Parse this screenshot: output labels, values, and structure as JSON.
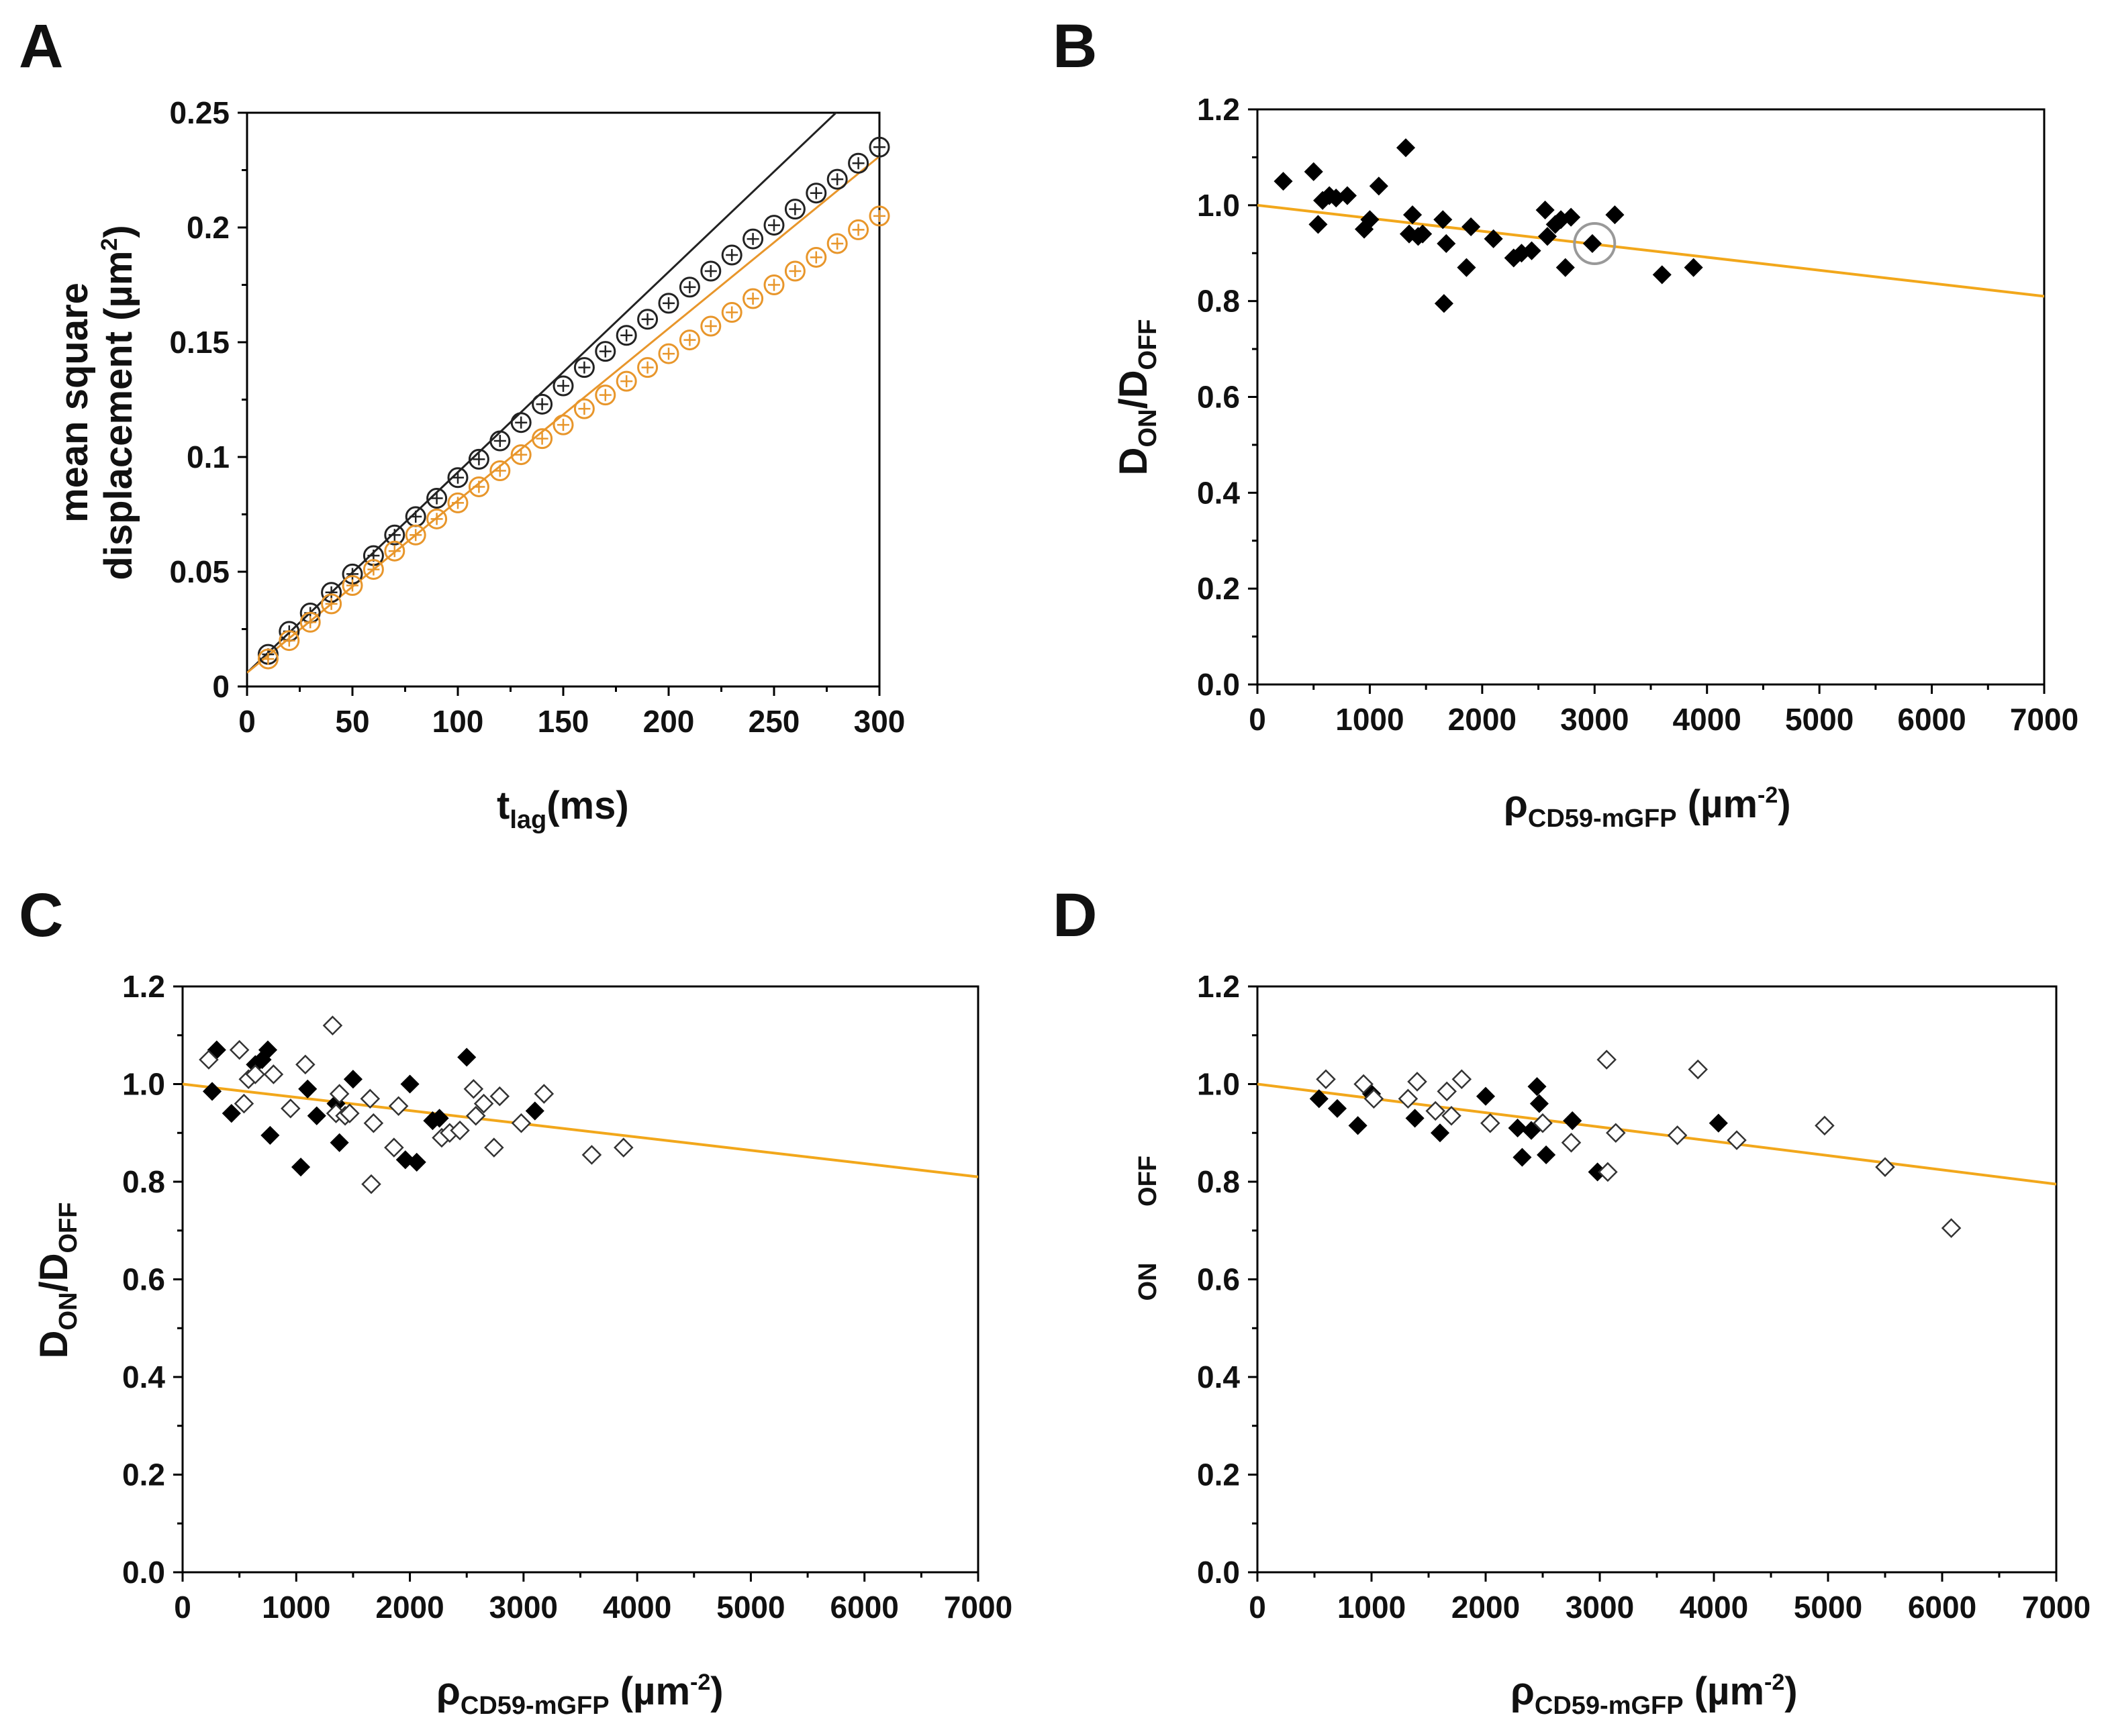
{
  "colors": {
    "fit": "#f2a71b",
    "orange_series": "#e8962b",
    "black": "#000000",
    "gray_marker": "#999999"
  },
  "chart_data": [
    {
      "panel": "A",
      "type": "scatter",
      "xlabel_main": "t",
      "xlabel_sub": "lag",
      "xlabel_unit": "(ms)",
      "ylabel_line1": "mean square",
      "ylabel_line2_pre": "displacement (µm",
      "ylabel_line2_sup": "2",
      "ylabel_line2_post": ")",
      "xlim": [
        0,
        300
      ],
      "ylim": [
        0,
        0.25
      ],
      "xticks": [
        0,
        50,
        100,
        150,
        200,
        250,
        300
      ],
      "xtick_labels": [
        "0",
        "50",
        "100",
        "150",
        "200",
        "250",
        "300"
      ],
      "yticks": [
        0,
        0.05,
        0.1,
        0.15,
        0.2,
        0.25
      ],
      "ytick_labels": [
        "0",
        "0.05",
        "0.1",
        "0.15",
        "0.2",
        "0.25"
      ],
      "series": [
        {
          "name": "black",
          "color": "#222222",
          "marker": "circle-cross",
          "x": [
            10,
            20,
            30,
            40,
            50,
            60,
            70,
            80,
            90,
            100,
            110,
            120,
            130,
            140,
            150,
            160,
            170,
            180,
            190,
            200,
            210,
            220,
            230,
            240,
            250,
            260,
            270,
            280,
            290,
            300
          ],
          "y": [
            0.014,
            0.024,
            0.032,
            0.041,
            0.049,
            0.057,
            0.066,
            0.074,
            0.082,
            0.091,
            0.099,
            0.107,
            0.115,
            0.123,
            0.131,
            0.139,
            0.146,
            0.153,
            0.16,
            0.167,
            0.174,
            0.181,
            0.188,
            0.195,
            0.201,
            0.208,
            0.215,
            0.221,
            0.228,
            0.235
          ]
        },
        {
          "name": "orange",
          "color": "#e8962b",
          "marker": "circle-cross",
          "x": [
            10,
            20,
            30,
            40,
            50,
            60,
            70,
            80,
            90,
            100,
            110,
            120,
            130,
            140,
            150,
            160,
            170,
            180,
            190,
            200,
            210,
            220,
            230,
            240,
            250,
            260,
            270,
            280,
            290,
            300
          ],
          "y": [
            0.012,
            0.02,
            0.028,
            0.036,
            0.044,
            0.051,
            0.059,
            0.066,
            0.073,
            0.08,
            0.087,
            0.094,
            0.101,
            0.108,
            0.114,
            0.121,
            0.127,
            0.133,
            0.139,
            0.145,
            0.151,
            0.157,
            0.163,
            0.169,
            0.175,
            0.181,
            0.187,
            0.193,
            0.199,
            0.205
          ]
        }
      ],
      "lines": [
        {
          "color": "#222222",
          "x": [
            0,
            300
          ],
          "y": [
            0.006,
            0.268
          ]
        },
        {
          "color": "#e8962b",
          "x": [
            0,
            300
          ],
          "y": [
            0.006,
            0.231
          ]
        }
      ]
    },
    {
      "panel": "B",
      "type": "scatter",
      "xlabel_main": "ρ",
      "xlabel_sub": "CD59-mGFP",
      "xlabel_unit_pre": " (µm",
      "xlabel_unit_sup": "-2",
      "xlabel_unit_post": ")",
      "ylabel_main_d1": "D",
      "ylabel_sub1": "ON",
      "ylabel_slash": "/D",
      "ylabel_sub2": "OFF",
      "xlim": [
        0,
        7000
      ],
      "ylim": [
        0,
        1.2
      ],
      "xticks": [
        0,
        1000,
        2000,
        3000,
        4000,
        5000,
        6000,
        7000
      ],
      "xtick_labels": [
        "0",
        "1000",
        "2000",
        "3000",
        "4000",
        "5000",
        "6000",
        "7000"
      ],
      "yticks": [
        0,
        0.2,
        0.4,
        0.6,
        0.8,
        1.0,
        1.2
      ],
      "ytick_labels": [
        "0.0",
        "0.2",
        "0.4",
        "0.6",
        "0.8",
        "1.0",
        "1.2"
      ],
      "fit": {
        "x": [
          0,
          7000
        ],
        "y": [
          1.0,
          0.81
        ]
      },
      "series": [
        {
          "name": "filled",
          "marker": "diamond-filled",
          "x": [
            230,
            500,
            540,
            580,
            640,
            700,
            800,
            950,
            1000,
            1080,
            1320,
            1350,
            1380,
            1430,
            1470,
            1650,
            1660,
            1680,
            1860,
            1900,
            2100,
            2280,
            2350,
            2440,
            2560,
            2580,
            2650,
            2700,
            2740,
            2790,
            2980,
            3180,
            3600,
            3880
          ],
          "y": [
            1.05,
            1.07,
            0.96,
            1.01,
            1.02,
            1.015,
            1.02,
            0.95,
            0.97,
            1.04,
            1.12,
            0.94,
            0.98,
            0.935,
            0.94,
            0.97,
            0.795,
            0.92,
            0.87,
            0.955,
            0.93,
            0.89,
            0.9,
            0.905,
            0.99,
            0.935,
            0.96,
            0.97,
            0.87,
            0.975,
            0.92,
            0.98,
            0.855,
            0.87
          ]
        }
      ],
      "highlight": {
        "x": 3000,
        "y": 0.92
      }
    },
    {
      "panel": "C",
      "type": "scatter",
      "xlabel_main": "ρ",
      "xlabel_sub": "CD59-mGFP",
      "xlabel_unit_pre": " (µm",
      "xlabel_unit_sup": "-2",
      "xlabel_unit_post": ")",
      "ylabel_main_d1": "D",
      "ylabel_sub1": "ON",
      "ylabel_slash": "/D",
      "ylabel_sub2": "OFF",
      "xlim": [
        0,
        7000
      ],
      "ylim": [
        0,
        1.2
      ],
      "xticks": [
        0,
        1000,
        2000,
        3000,
        4000,
        5000,
        6000,
        7000
      ],
      "xtick_labels": [
        "0",
        "1000",
        "2000",
        "3000",
        "4000",
        "5000",
        "6000",
        "7000"
      ],
      "yticks": [
        0,
        0.2,
        0.4,
        0.6,
        0.8,
        1.0,
        1.2
      ],
      "ytick_labels": [
        "0.0",
        "0.2",
        "0.4",
        "0.6",
        "0.8",
        "1.0",
        "1.2"
      ],
      "fit": {
        "x": [
          0,
          7000
        ],
        "y": [
          1.0,
          0.81
        ]
      },
      "series": [
        {
          "name": "filled",
          "marker": "diamond-filled",
          "x": [
            260,
            300,
            430,
            640,
            700,
            750,
            770,
            1040,
            1100,
            1180,
            1350,
            1380,
            1500,
            1960,
            2000,
            2060,
            2200,
            2260,
            2500,
            3100
          ],
          "y": [
            0.985,
            1.07,
            0.94,
            1.04,
            1.05,
            1.07,
            0.895,
            0.83,
            0.99,
            0.935,
            0.96,
            0.88,
            1.01,
            0.845,
            1.0,
            0.84,
            0.925,
            0.93,
            1.055,
            0.945
          ]
        },
        {
          "name": "open",
          "marker": "diamond-open",
          "x": [
            230,
            500,
            540,
            580,
            640,
            800,
            950,
            1080,
            1320,
            1350,
            1380,
            1430,
            1470,
            1650,
            1660,
            1680,
            1860,
            1900,
            2280,
            2350,
            2440,
            2560,
            2580,
            2650,
            2740,
            2790,
            2980,
            3180,
            3600,
            3880
          ],
          "y": [
            1.05,
            1.07,
            0.96,
            1.01,
            1.02,
            1.02,
            0.95,
            1.04,
            1.12,
            0.94,
            0.98,
            0.935,
            0.94,
            0.97,
            0.795,
            0.92,
            0.87,
            0.955,
            0.89,
            0.9,
            0.905,
            0.99,
            0.935,
            0.96,
            0.87,
            0.975,
            0.92,
            0.98,
            0.855,
            0.87
          ]
        }
      ]
    },
    {
      "panel": "D",
      "type": "scatter",
      "xlabel_main": "ρ",
      "xlabel_sub": "CD59-mGFP",
      "xlabel_unit_pre": " (µm",
      "xlabel_unit_sup": "-2",
      "xlabel_unit_post": ")",
      "ylabel_fragment_1": "OFF",
      "ylabel_fragment_2": "ON",
      "xlim": [
        0,
        7000
      ],
      "ylim": [
        0,
        1.2
      ],
      "xticks": [
        0,
        1000,
        2000,
        3000,
        4000,
        5000,
        6000,
        7000
      ],
      "xtick_labels": [
        "0",
        "1000",
        "2000",
        "3000",
        "4000",
        "5000",
        "6000",
        "7000"
      ],
      "yticks": [
        0,
        0.2,
        0.4,
        0.6,
        0.8,
        1.0,
        1.2
      ],
      "ytick_labels": [
        "0.0",
        "0.2",
        "0.4",
        "0.6",
        "0.8",
        "1.0",
        "1.2"
      ],
      "fit": {
        "x": [
          0,
          7000
        ],
        "y": [
          1.0,
          0.795
        ]
      },
      "series": [
        {
          "name": "filled",
          "marker": "diamond-filled",
          "x": [
            540,
            700,
            880,
            1000,
            1380,
            1600,
            2000,
            2280,
            2320,
            2400,
            2450,
            2470,
            2530,
            2760,
            2980,
            4040
          ],
          "y": [
            0.97,
            0.95,
            0.915,
            0.98,
            0.93,
            0.9,
            0.975,
            0.91,
            0.85,
            0.905,
            0.995,
            0.96,
            0.855,
            0.925,
            0.82,
            0.92
          ]
        },
        {
          "name": "open",
          "marker": "diamond-open",
          "x": [
            600,
            930,
            1020,
            1320,
            1400,
            1560,
            1660,
            1700,
            1790,
            2040,
            2500,
            2750,
            3060,
            3070,
            3140,
            3680,
            3860,
            4200,
            4970,
            5500,
            6080
          ],
          "y": [
            1.01,
            1.0,
            0.97,
            0.97,
            1.005,
            0.945,
            0.985,
            0.935,
            1.01,
            0.92,
            0.92,
            0.88,
            1.05,
            0.82,
            0.9,
            0.895,
            1.03,
            0.885,
            0.915,
            0.83,
            0.705
          ]
        }
      ]
    }
  ],
  "panel_labels": [
    "A",
    "B",
    "C",
    "D"
  ]
}
